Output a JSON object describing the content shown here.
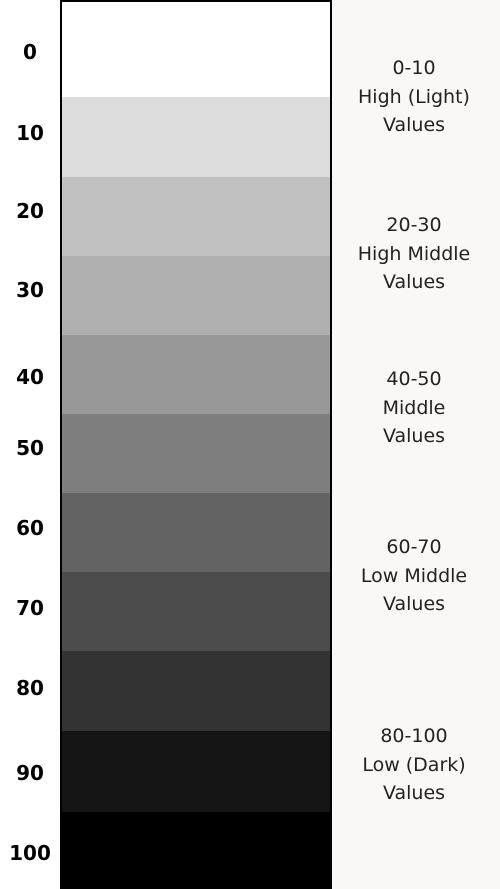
{
  "scale": {
    "ticks": [
      "0",
      "10",
      "20",
      "30",
      "40",
      "50",
      "60",
      "70",
      "80",
      "90",
      "100"
    ],
    "swatches": [
      {
        "value": 0,
        "color": "#ffffff"
      },
      {
        "value": 10,
        "color": "#dcdcdc"
      },
      {
        "value": 20,
        "color": "#c1c1c1"
      },
      {
        "value": 30,
        "color": "#afafaf"
      },
      {
        "value": 40,
        "color": "#989898"
      },
      {
        "value": 50,
        "color": "#7e7e7e"
      },
      {
        "value": 60,
        "color": "#636363"
      },
      {
        "value": 70,
        "color": "#4c4c4c"
      },
      {
        "value": 80,
        "color": "#333333"
      },
      {
        "value": 90,
        "color": "#141414"
      },
      {
        "value": 100,
        "color": "#000000"
      }
    ]
  },
  "groups": [
    {
      "range": "0-10",
      "name": "High (Light)",
      "suffix": "Values"
    },
    {
      "range": "20-30",
      "name": "High Middle",
      "suffix": "Values"
    },
    {
      "range": "40-50",
      "name": "Middle",
      "suffix": "Values"
    },
    {
      "range": "60-70",
      "name": "Low Middle",
      "suffix": "Values"
    },
    {
      "range": "80-100",
      "name": "Low (Dark)",
      "suffix": "Values"
    }
  ]
}
